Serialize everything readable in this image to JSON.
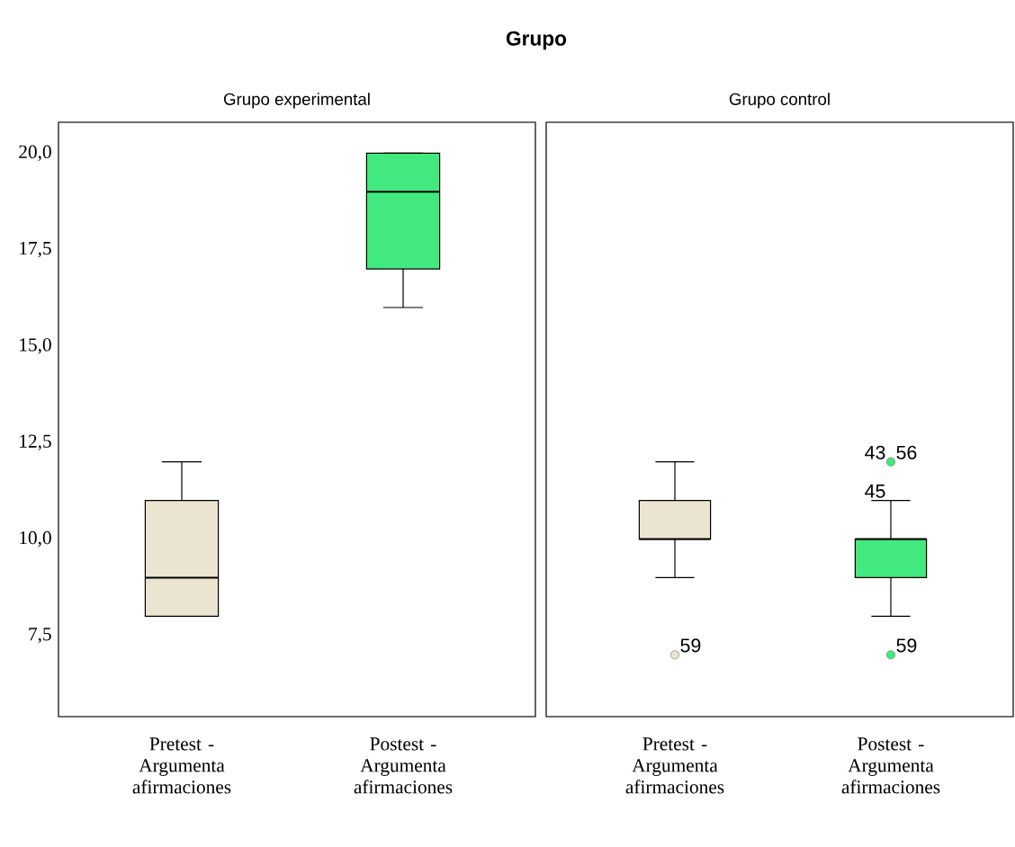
{
  "chart_data": [
    {
      "type": "box",
      "title": "Grupo",
      "subtitle": "Grupo experimental",
      "categories": [
        "Pretest - Argumenta afirmaciones",
        "Postest - Argumenta afirmaciones"
      ],
      "colors": [
        "#ebe4d0",
        "#42e97e"
      ],
      "boxes": [
        {
          "low": 8,
          "q1": 8,
          "median": 9,
          "q3": 11,
          "high": 12
        },
        {
          "low": 16,
          "q1": 17,
          "median": 19,
          "q3": 20,
          "high": 20
        }
      ],
      "ylim": [
        5.4,
        20.8
      ],
      "yticks": [
        {
          "value": 7.5,
          "label": "7,5"
        },
        {
          "value": 10,
          "label": "10,0"
        },
        {
          "value": 12.5,
          "label": "12,5"
        },
        {
          "value": 15,
          "label": "15,0"
        },
        {
          "value": 17.5,
          "label": "17,5"
        },
        {
          "value": 20,
          "label": "20,0"
        }
      ],
      "grid": false,
      "marker": "circle"
    },
    {
      "type": "box",
      "subtitle": "Grupo control",
      "categories": [
        "Pretest - Argumenta afirmaciones",
        "Postest - Argumenta afirmaciones"
      ],
      "colors": [
        "#ebe4d0",
        "#42e97e"
      ],
      "boxes": [
        {
          "low": 9,
          "q1": 10,
          "median": 10,
          "q3": 11,
          "high": 12,
          "outliers": [
            7
          ]
        },
        {
          "low": 8,
          "q1": 9,
          "median": 10,
          "q3": 10,
          "high": 11,
          "outliers": [
            12,
            7
          ]
        }
      ],
      "ylim": [
        5.4,
        20.8
      ],
      "tick_labels": "x",
      "grid": false,
      "marker": "circle",
      "annotations": [
        "59",
        "43",
        "56",
        "45",
        "59"
      ]
    }
  ]
}
